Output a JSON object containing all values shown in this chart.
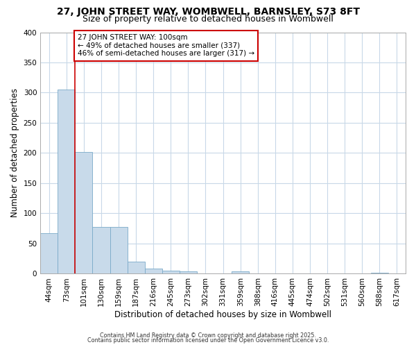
{
  "title1": "27, JOHN STREET WAY, WOMBWELL, BARNSLEY, S73 8FT",
  "title2": "Size of property relative to detached houses in Wombwell",
  "xlabel": "Distribution of detached houses by size in Wombwell",
  "ylabel": "Number of detached properties",
  "categories": [
    "44sqm",
    "73sqm",
    "101sqm",
    "130sqm",
    "159sqm",
    "187sqm",
    "216sqm",
    "245sqm",
    "273sqm",
    "302sqm",
    "331sqm",
    "359sqm",
    "388sqm",
    "416sqm",
    "445sqm",
    "474sqm",
    "502sqm",
    "531sqm",
    "560sqm",
    "588sqm",
    "617sqm"
  ],
  "values": [
    67,
    305,
    202,
    78,
    78,
    20,
    9,
    5,
    4,
    0,
    0,
    4,
    0,
    0,
    0,
    0,
    0,
    0,
    0,
    2,
    0
  ],
  "bar_color": "#c8daea",
  "bar_edge_color": "#7aaac8",
  "red_line_index": 2,
  "ylim": [
    0,
    400
  ],
  "yticks": [
    0,
    50,
    100,
    150,
    200,
    250,
    300,
    350,
    400
  ],
  "annotation_title": "27 JOHN STREET WAY: 100sqm",
  "annotation_line1": "← 49% of detached houses are smaller (337)",
  "annotation_line2": "46% of semi-detached houses are larger (317) →",
  "annotation_box_facecolor": "#ffffff",
  "annotation_box_edgecolor": "#cc0000",
  "footer1": "Contains HM Land Registry data © Crown copyright and database right 2025.",
  "footer2": "Contains public sector information licensed under the Open Government Licence v3.0.",
  "background_color": "#ffffff",
  "grid_color": "#c8d8e8",
  "title1_fontsize": 10,
  "title2_fontsize": 9
}
